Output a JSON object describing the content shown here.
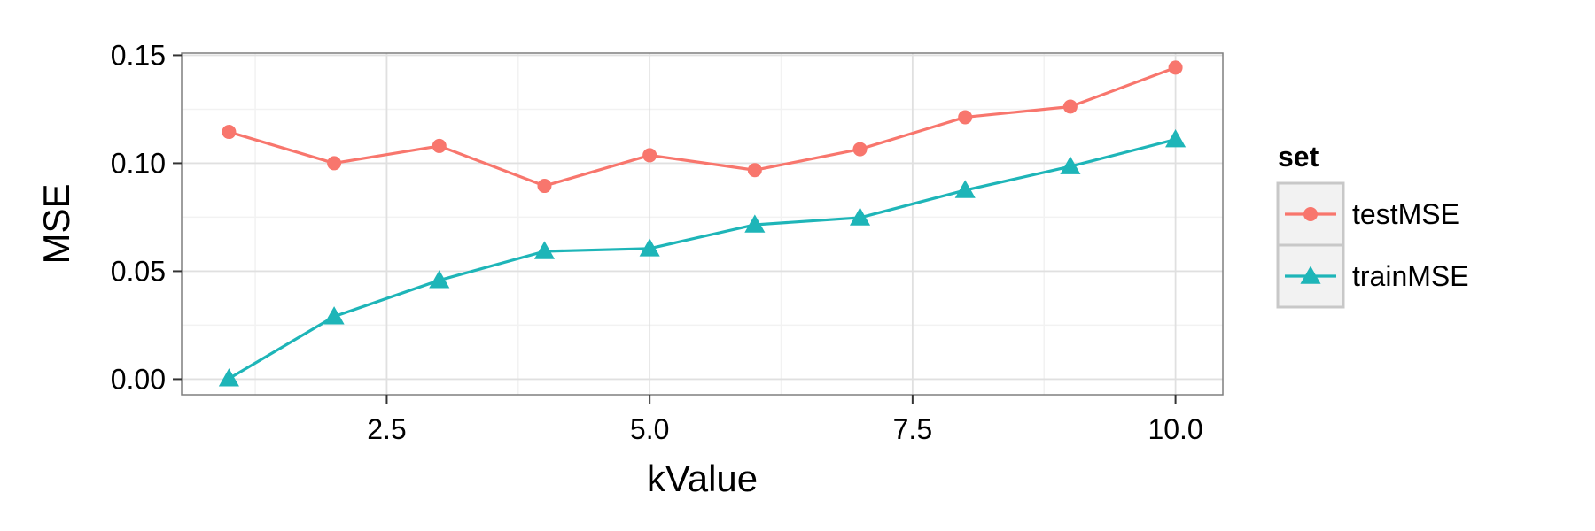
{
  "chart_data": {
    "type": "line",
    "xlabel": "kValue",
    "ylabel": "MSE",
    "xlim": [
      0.55,
      10.45
    ],
    "ylim": [
      -0.0072,
      0.151
    ],
    "x_ticks": [
      2.5,
      5.0,
      7.5,
      10.0
    ],
    "x_tick_labels": [
      "2.5",
      "5.0",
      "7.5",
      "10.0"
    ],
    "y_ticks": [
      0.0,
      0.05,
      0.1,
      0.15
    ],
    "y_tick_labels": [
      "0.00",
      "0.05",
      "0.10",
      "0.15"
    ],
    "grid": true,
    "legend": {
      "title": "set",
      "position": "right"
    },
    "x": [
      1,
      2,
      3,
      4,
      5,
      6,
      7,
      8,
      9,
      10
    ],
    "series": [
      {
        "name": "testMSE",
        "color": "#F8766D",
        "marker": "circle",
        "values": [
          0.1145,
          0.1,
          0.108,
          0.0895,
          0.1037,
          0.0968,
          0.1065,
          0.1213,
          0.1262,
          0.1443
        ]
      },
      {
        "name": "trainMSE",
        "color": "#1EB5B8",
        "marker": "triangle",
        "values": [
          0.0003,
          0.029,
          0.0458,
          0.0592,
          0.0605,
          0.0715,
          0.0748,
          0.0875,
          0.0985,
          0.111
        ]
      }
    ]
  }
}
